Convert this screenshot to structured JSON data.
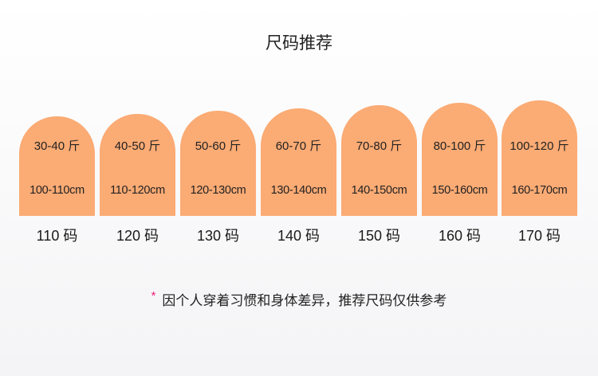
{
  "title": "尺码推荐",
  "accent_color": "#fbab74",
  "note_star_color": "#e8207a",
  "sizes": [
    {
      "weight": "30-40 斤",
      "height": "100-110cm",
      "label": "110 码"
    },
    {
      "weight": "40-50 斤",
      "height": "110-120cm",
      "label": "120 码"
    },
    {
      "weight": "50-60 斤",
      "height": "120-130cm",
      "label": "130 码"
    },
    {
      "weight": "60-70 斤",
      "height": "130-140cm",
      "label": "140 码"
    },
    {
      "weight": "70-80 斤",
      "height": "140-150cm",
      "label": "150 码"
    },
    {
      "weight": "80-100 斤",
      "height": "150-160cm",
      "label": "160 码"
    },
    {
      "weight": "100-120 斤",
      "height": "160-170cm",
      "label": "170 码"
    }
  ],
  "note": {
    "star": "*",
    "text": "因个人穿着习惯和身体差异，推荐尺码仅供参考"
  }
}
